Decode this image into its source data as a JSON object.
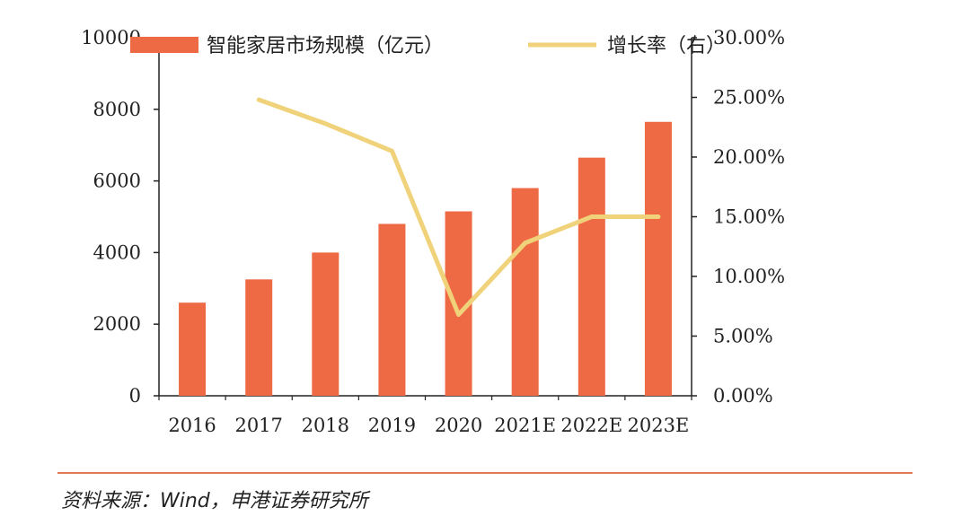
{
  "chart_data": {
    "type": "bar+line",
    "categories": [
      "2016",
      "2017",
      "2018",
      "2019",
      "2020",
      "2021E",
      "2022E",
      "2023E"
    ],
    "series": [
      {
        "name": "智能家居市场规模（亿元）",
        "type": "bar",
        "axis": "left",
        "color": "#EE6A44",
        "values": [
          2600,
          3250,
          4000,
          4800,
          5150,
          5800,
          6650,
          7650
        ]
      },
      {
        "name": "增长率（右）",
        "type": "line",
        "axis": "right",
        "color": "#F0D27A",
        "values": [
          null,
          24.8,
          22.8,
          20.5,
          6.8,
          12.8,
          15.0,
          15.0
        ]
      }
    ],
    "y_left": {
      "min": 0,
      "max": 10000,
      "ticks": [
        "0",
        "2000",
        "4000",
        "6000",
        "8000",
        "10000"
      ]
    },
    "y_right": {
      "min": 0,
      "max": 30,
      "ticks": [
        "0.00%",
        "5.00%",
        "10.00%",
        "15.00%",
        "20.00%",
        "25.00%",
        "30.00%"
      ]
    },
    "grid": false,
    "legend_position": "top"
  },
  "footer": {
    "source": "资料来源：Wind，申港证券研究所",
    "rule_color": "#E07B55"
  }
}
